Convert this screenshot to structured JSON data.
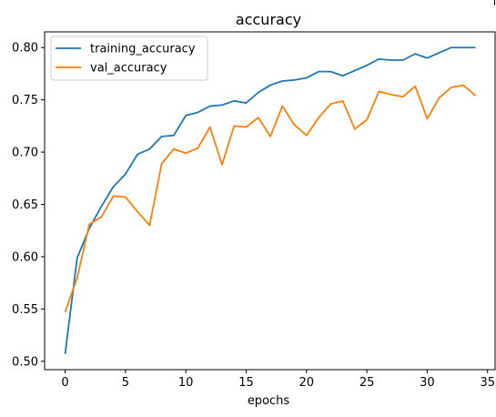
{
  "chart_data": {
    "type": "line",
    "title": "accuracy",
    "xlabel": "epochs",
    "ylabel": "",
    "xlim": [
      -1.7,
      35.7
    ],
    "ylim": [
      0.492,
      0.815
    ],
    "xticks": [
      0,
      5,
      10,
      15,
      20,
      25,
      30,
      35
    ],
    "yticks": [
      0.5,
      0.55,
      0.6,
      0.65,
      0.7,
      0.75,
      0.8
    ],
    "ytick_labels": [
      "0.50",
      "0.55",
      "0.60",
      "0.65",
      "0.70",
      "0.75",
      "0.80"
    ],
    "grid": false,
    "legend_position": "top-left",
    "x": [
      0,
      1,
      2,
      3,
      4,
      5,
      6,
      7,
      8,
      9,
      10,
      11,
      12,
      13,
      14,
      15,
      16,
      17,
      18,
      19,
      20,
      21,
      22,
      23,
      24,
      25,
      26,
      27,
      28,
      29,
      30,
      31,
      32,
      33,
      34
    ],
    "series": [
      {
        "name": "training_accuracy",
        "color": "#1f77b4",
        "values": [
          0.507,
          0.599,
          0.627,
          0.648,
          0.667,
          0.679,
          0.698,
          0.703,
          0.715,
          0.716,
          0.735,
          0.738,
          0.744,
          0.745,
          0.749,
          0.747,
          0.757,
          0.764,
          0.768,
          0.769,
          0.771,
          0.777,
          0.777,
          0.773,
          0.778,
          0.783,
          0.789,
          0.788,
          0.788,
          0.794,
          0.79,
          0.795,
          0.8,
          0.8,
          0.8
        ]
      },
      {
        "name": "val_accuracy",
        "color": "#ff7f0e",
        "values": [
          0.547,
          0.58,
          0.631,
          0.638,
          0.658,
          0.657,
          0.643,
          0.63,
          0.689,
          0.703,
          0.699,
          0.704,
          0.724,
          0.688,
          0.725,
          0.724,
          0.733,
          0.715,
          0.744,
          0.726,
          0.716,
          0.733,
          0.746,
          0.749,
          0.722,
          0.731,
          0.758,
          0.755,
          0.753,
          0.763,
          0.732,
          0.752,
          0.762,
          0.764,
          0.754
        ]
      }
    ]
  }
}
